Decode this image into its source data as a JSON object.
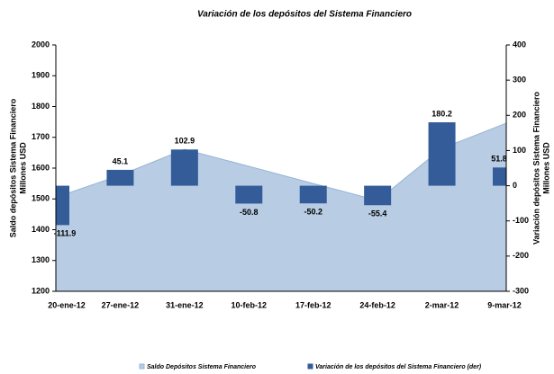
{
  "chart_data": {
    "type": "area_bar",
    "title": "Variación de los depósitos  del Sistema Financiero",
    "y_label": [
      "Saldo depósitos Sistema Financiero",
      "Millones USD"
    ],
    "y2_label": [
      "Variación  depósitos Sistema Financiero",
      "Millones USD"
    ],
    "categories": [
      "20-ene-12",
      "27-ene-12",
      "31-ene-12",
      "10-feb-12",
      "17-feb-12",
      "24-feb-12",
      "2-mar-12",
      "9-mar-12"
    ],
    "series": [
      {
        "name": "Saldo Depósitos Sistema Financiero",
        "color": "#b8cce4",
        "type": "area",
        "values": [
          1505,
          1577,
          1661,
          1606,
          1550,
          1495,
          1664,
          1746
        ]
      },
      {
        "name": "Variación de los depósitos del Sistema Financiero (der)",
        "color": "#335c99",
        "type": "bar",
        "axis": "y2",
        "values": [
          -111.9,
          45.1,
          102.9,
          -50.8,
          -50.2,
          -55.4,
          180.2,
          51.8
        ]
      }
    ],
    "ylim": [
      1200,
      2000
    ],
    "yticks": [
      1200,
      1300,
      1400,
      1500,
      1600,
      1700,
      1800,
      1900,
      2000
    ],
    "y2lim": [
      -300,
      400
    ],
    "y2ticks": [
      -300,
      -200,
      -100,
      0,
      100,
      200,
      300,
      400
    ],
    "legend": "bottom"
  }
}
